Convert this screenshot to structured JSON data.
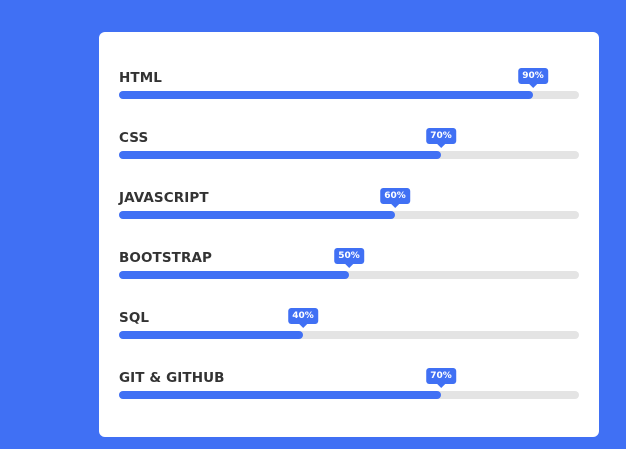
{
  "colors": {
    "background": "#4070F4",
    "accent": "#4070F4",
    "track": "#e4e4e4",
    "card": "#ffffff",
    "label": "#333333"
  },
  "skills": [
    {
      "name": "HTML",
      "percent_label": "90%",
      "percent": 90
    },
    {
      "name": "CSS",
      "percent_label": "70%",
      "percent": 70
    },
    {
      "name": "JAVASCRIPT",
      "percent_label": "60%",
      "percent": 60
    },
    {
      "name": "BOOTSTRAP",
      "percent_label": "50%",
      "percent": 50
    },
    {
      "name": "SQL",
      "percent_label": "40%",
      "percent": 40
    },
    {
      "name": "GIT & GITHUB",
      "percent_label": "70%",
      "percent": 70
    }
  ]
}
